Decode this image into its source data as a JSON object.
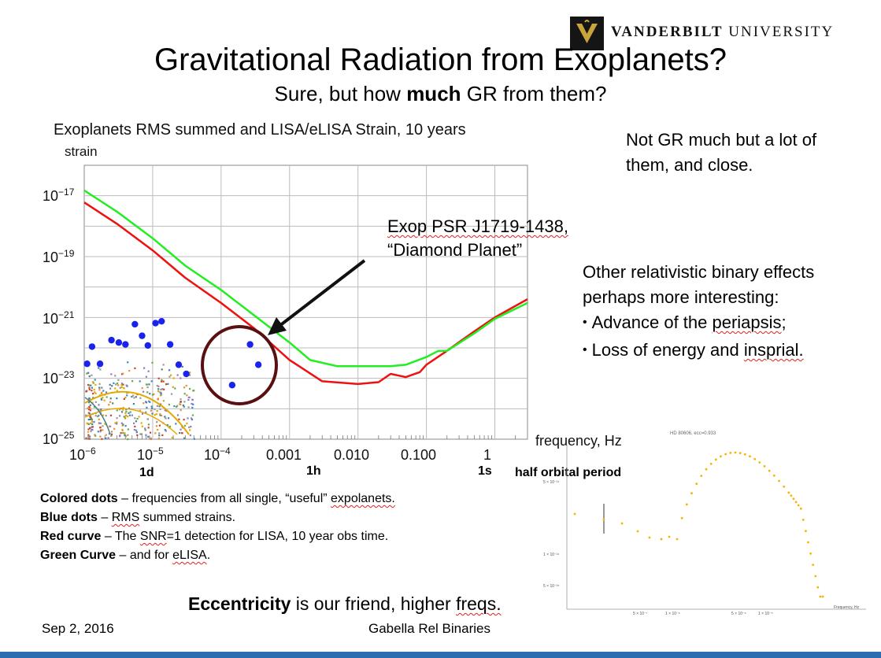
{
  "header": {
    "logo_wordmark_bold": "VANDERBILT",
    "logo_wordmark_rest": " UNIVERSITY",
    "title": "Gravitational Radiation from Exoplanets?",
    "subtitle_before": "Sure, but how ",
    "subtitle_bold": "much",
    "subtitle_after": " GR from them?"
  },
  "chart": {
    "title": "Exoplanets RMS summed and LISA/eLISA Strain, 10 years",
    "ylabel": "strain",
    "xlabel": "frequency, Hz",
    "y_ticks": [
      {
        "base": "10",
        "exp": "−17"
      },
      {
        "base": "10",
        "exp": "−19"
      },
      {
        "base": "10",
        "exp": "−21"
      },
      {
        "base": "10",
        "exp": "−23"
      },
      {
        "base": "10",
        "exp": "−25"
      }
    ],
    "x_ticks": [
      {
        "base": "10",
        "exp": "−6",
        "text": ""
      },
      {
        "base": "10",
        "exp": "−5",
        "text": ""
      },
      {
        "base": "10",
        "exp": "−4",
        "text": ""
      },
      {
        "base": "",
        "exp": "",
        "text": "0.001"
      },
      {
        "base": "",
        "exp": "",
        "text": "0.010"
      },
      {
        "base": "",
        "exp": "",
        "text": "0.100"
      },
      {
        "base": "",
        "exp": "",
        "text": "1"
      }
    ],
    "period_marks": [
      "1d",
      "1h",
      "1s"
    ],
    "period_caption": "half orbital period",
    "annotation_line1": "Exop PSR J1719-1438,",
    "annotation_line2": "“Diamond Planet”"
  },
  "chart_data": {
    "type": "line",
    "title": "Exoplanets RMS summed and LISA/eLISA Strain, 10 years",
    "xlabel": "frequency, Hz",
    "ylabel": "strain",
    "xscale": "log",
    "yscale": "log",
    "xlim": [
      1e-06,
      3
    ],
    "ylim": [
      1e-25,
      1e-16
    ],
    "grid": true,
    "series": [
      {
        "name": "Red curve",
        "color": "#ee1111",
        "x": [
          1e-06,
          3e-06,
          1e-05,
          3e-05,
          0.0001,
          0.0003,
          0.001,
          0.003,
          0.01,
          0.02,
          0.03,
          0.05,
          0.08,
          0.1,
          0.2,
          0.5,
          1,
          3
        ],
        "y": [
          6e-18,
          1.2e-18,
          1.6e-19,
          2e-20,
          3e-21,
          4.5e-22,
          4e-23,
          8e-24,
          6.5e-24,
          7.5e-24,
          1.4e-23,
          1.1e-23,
          1.6e-23,
          2.8e-23,
          8e-23,
          3.5e-22,
          1e-21,
          4e-21
        ]
      },
      {
        "name": "Green Curve",
        "color": "#22ee22",
        "x": [
          1e-06,
          3e-06,
          1e-05,
          3e-05,
          0.0001,
          0.0003,
          0.001,
          0.002,
          0.005,
          0.01,
          0.03,
          0.05,
          0.1,
          0.15,
          0.2,
          0.5,
          1,
          3
        ],
        "y": [
          1.5e-17,
          3e-18,
          4e-19,
          5e-20,
          8e-21,
          1.2e-21,
          1.5e-22,
          4e-23,
          2.5e-23,
          2.5e-23,
          2.5e-23,
          2.8e-23,
          5e-23,
          8e-23,
          8e-23,
          3e-22,
          9e-22,
          3e-21
        ]
      },
      {
        "name": "Blue dots",
        "type": "scatter",
        "color": "#1a22ee",
        "x": [
          1.1e-06,
          1.3e-06,
          1.7e-06,
          2.5e-06,
          3.2e-06,
          4e-06,
          5.5e-06,
          7e-06,
          8.5e-06,
          1.1e-05,
          1.35e-05,
          1.8e-05,
          2.4e-05,
          3.1e-05,
          0.000145,
          0.000265,
          0.00035
        ],
        "y": [
          3e-23,
          1.1e-22,
          3e-23,
          1.8e-22,
          1.5e-22,
          1.3e-22,
          6e-22,
          2.5e-22,
          1.2e-22,
          6.5e-22,
          7.5e-22,
          1.3e-22,
          2.8e-23,
          1.4e-23,
          6e-24,
          1.3e-22,
          2.8e-23
        ]
      }
    ]
  },
  "right_notes": {
    "note1": "Not GR much but a lot of them, and close.",
    "note2": "Other relativistic binary effects perhaps more interesting:",
    "bullet1_before": "Advance of the ",
    "bullet1_sq": "periapsis",
    "bullet1_after": ";",
    "bullet2_before": "Loss of energy and ",
    "bullet2_sq": "insprial."
  },
  "legend": {
    "l1_bold": "Colored dots",
    "l1_before": " – frequencies from all single, “useful” ",
    "l1_sq": "expolanets.",
    "l2_bold": "Blue dots",
    "l2_before": " – ",
    "l2_sq": "RMS",
    "l2_after": " summed strains.",
    "l3_bold": "Red curve",
    "l3_before": " – The ",
    "l3_sq": "SNR",
    "l3_after": "=1 detection for LISA, 10 year obs time.",
    "l4_bold": "Green Curve",
    "l4_before": " – and for ",
    "l4_sq": "eLISA",
    "l4_after": "."
  },
  "eccentricity": {
    "bold": "Eccentricity",
    "before": " is our friend, higher ",
    "sq": "freqs."
  },
  "inset": {
    "title": "HD 80606, ecc=0.933",
    "xlabel": "Frequency, Hz",
    "y_ticks": [
      "5 × 10⁻²⁴",
      "1 × 10⁻²⁴",
      "5 × 10⁻²⁵"
    ],
    "x_ticks": [
      "5 × 10⁻⁷",
      "1 × 10⁻⁶",
      "5 × 10⁻⁶",
      "1 × 10⁻⁵"
    ]
  },
  "footer": {
    "date": "Sep 2, 2016",
    "center": "Gabella Rel Binaries"
  },
  "colors": {
    "red_curve": "#ee1111",
    "green_curve": "#22ee22",
    "blue_dots": "#1a22ee",
    "inset_curve": "#f5b400",
    "circle": "#5a1010",
    "bottom_bar": "#2b6cb0"
  }
}
